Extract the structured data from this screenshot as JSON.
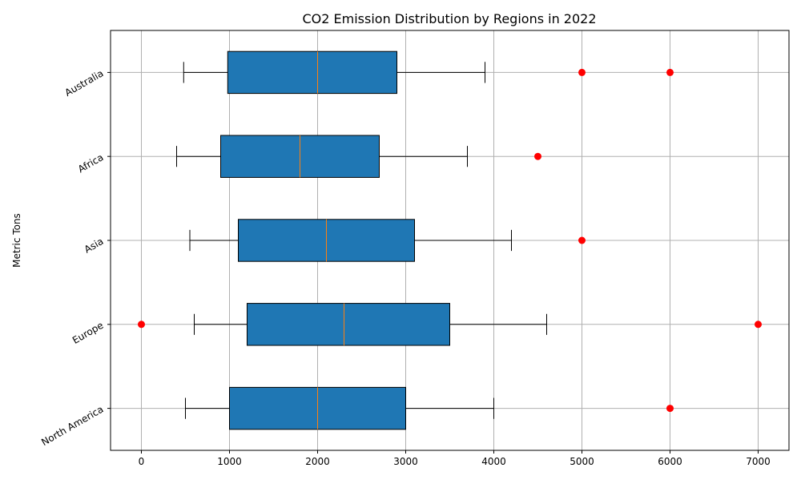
{
  "chart_data": {
    "type": "boxplot",
    "orientation": "horizontal",
    "title": "CO2 Emission Distribution by Regions in 2022",
    "xlabel": "",
    "ylabel": "Metric Tons",
    "xlim": [
      -350,
      7350
    ],
    "xticks": [
      0,
      1000,
      2000,
      3000,
      4000,
      5000,
      6000,
      7000
    ],
    "grid": true,
    "categories": [
      "North America",
      "Europe",
      "Asia",
      "Africa",
      "Australia"
    ],
    "boxes": [
      {
        "category": "North America",
        "whisker_low": 500,
        "q1": 1000,
        "median": 2000,
        "q3": 3000,
        "whisker_high": 4000,
        "outliers": [
          6000
        ]
      },
      {
        "category": "Europe",
        "whisker_low": 600,
        "q1": 1200,
        "median": 2300,
        "q3": 3500,
        "whisker_high": 4600,
        "outliers": [
          0,
          7000
        ]
      },
      {
        "category": "Asia",
        "whisker_low": 550,
        "q1": 1100,
        "median": 2100,
        "q3": 3100,
        "whisker_high": 4200,
        "outliers": [
          5000
        ]
      },
      {
        "category": "Africa",
        "whisker_low": 400,
        "q1": 900,
        "median": 1800,
        "q3": 2700,
        "whisker_high": 3700,
        "outliers": [
          4500
        ]
      },
      {
        "category": "Australia",
        "whisker_low": 480,
        "q1": 980,
        "median": 2000,
        "q3": 2900,
        "whisker_high": 3900,
        "outliers": [
          5000,
          6000
        ]
      }
    ],
    "colors": {
      "box_fill": "#1f77b4",
      "median": "#ff7f0e",
      "outlier": "#ff0000",
      "grid": "#b0b0b0"
    }
  }
}
